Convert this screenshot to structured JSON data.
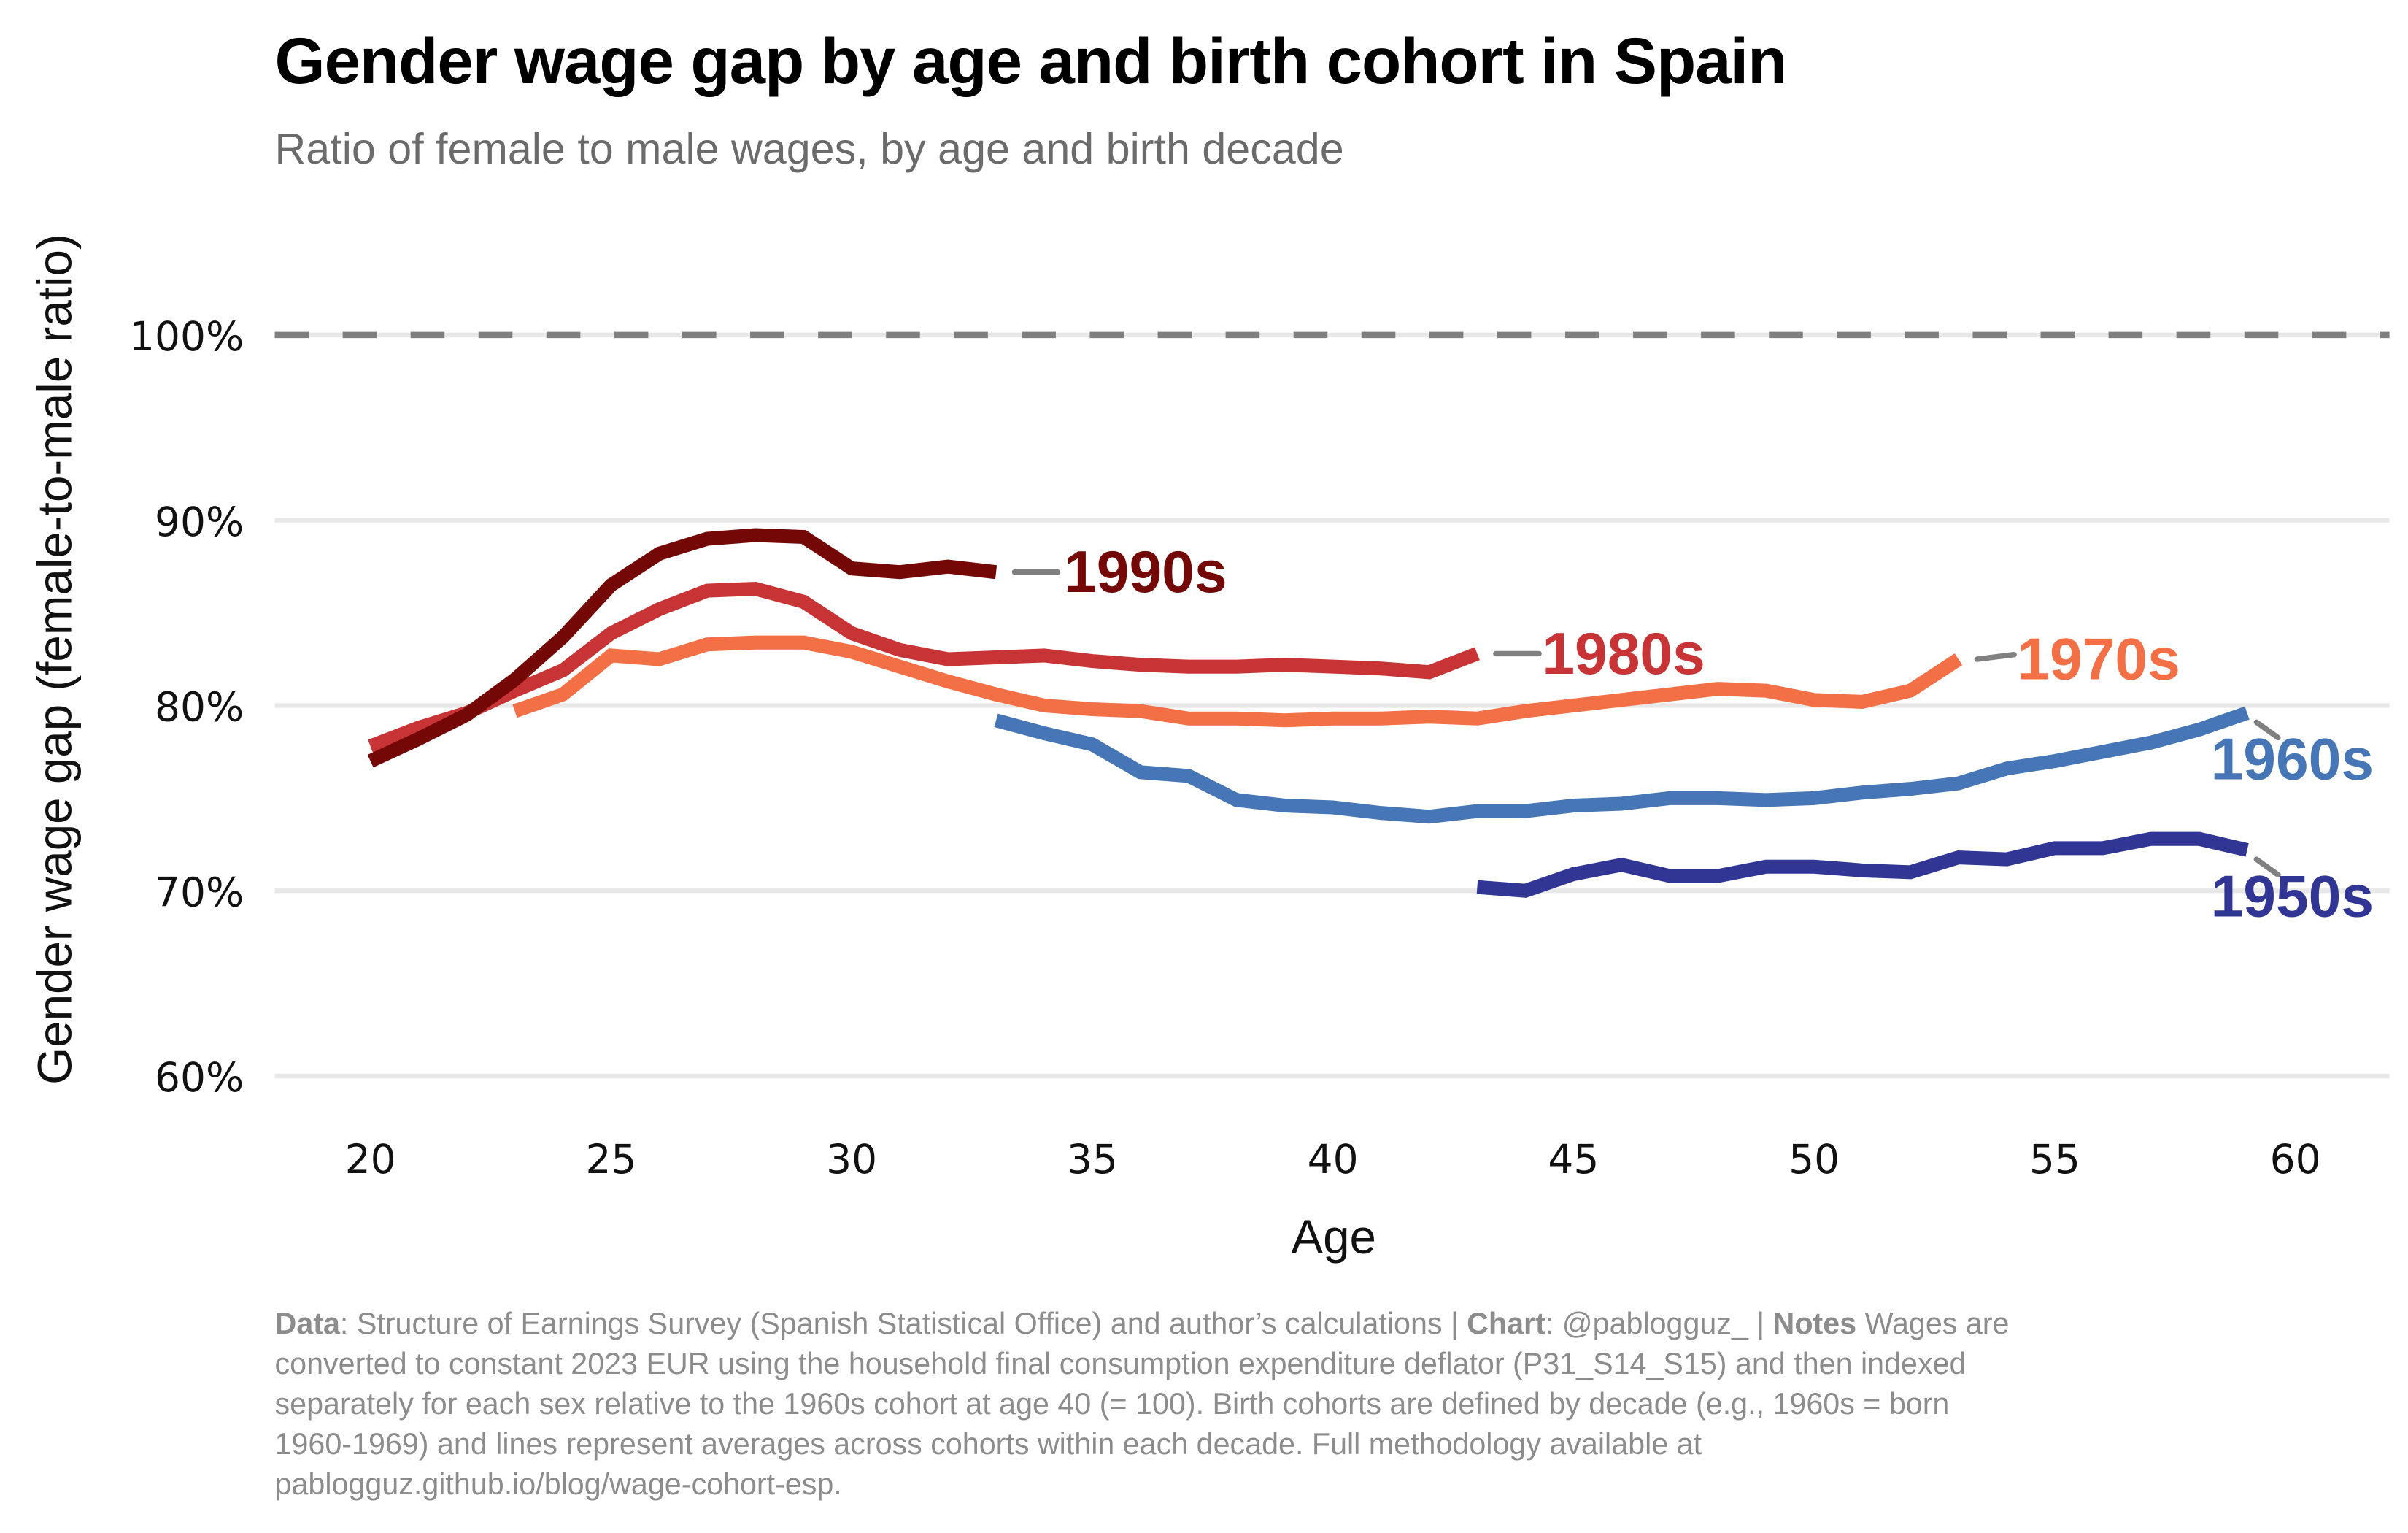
{
  "chart_data": {
    "type": "line",
    "title": "Gender wage gap by age and birth cohort in Spain",
    "subtitle": "Ratio of female to male wages, by age and birth decade",
    "xlabel": "Age",
    "ylabel": "Gender wage gap (female-to-male ratio)",
    "xlim": [
      18,
      62
    ],
    "ylim": [
      57,
      100
    ],
    "x_ticks": [
      20,
      25,
      30,
      35,
      40,
      45,
      50,
      55,
      60
    ],
    "x_tick_labels": [
      "20",
      "25",
      "30",
      "35",
      "40",
      "45",
      "50",
      "55",
      "60"
    ],
    "y_ticks": [
      60,
      70,
      80,
      90,
      100
    ],
    "y_tick_labels": [
      "60%",
      "70%",
      "80%",
      "90%",
      "100%"
    ],
    "grid": "horizontal",
    "reference_line": {
      "value": 100,
      "style": "dashed",
      "color": "#7f7f7f"
    },
    "legend": "direct-labels-at-line-ends",
    "series": [
      {
        "name": "1990s",
        "color": "#730806",
        "x": [
          20,
          21,
          22,
          23,
          24,
          25,
          26,
          27,
          28,
          29,
          30,
          31,
          32,
          33
        ],
        "values": [
          77.0,
          78.2,
          79.5,
          81.4,
          83.7,
          86.5,
          88.2,
          89.0,
          89.2,
          89.1,
          87.4,
          87.2,
          87.5,
          87.2
        ]
      },
      {
        "name": "1980s",
        "color": "#c83335",
        "x": [
          20,
          21,
          22,
          23,
          24,
          25,
          26,
          27,
          28,
          29,
          30,
          31,
          32,
          33,
          34,
          35,
          36,
          37,
          38,
          39,
          40,
          41,
          42,
          43
        ],
        "values": [
          77.8,
          78.8,
          79.6,
          80.8,
          81.9,
          83.9,
          85.2,
          86.2,
          86.3,
          85.6,
          83.9,
          83.0,
          82.5,
          82.6,
          82.7,
          82.4,
          82.2,
          82.1,
          82.1,
          82.2,
          82.1,
          82.0,
          81.8,
          82.8
        ]
      },
      {
        "name": "1970s",
        "color": "#f36f45",
        "x": [
          23,
          24,
          25,
          26,
          27,
          28,
          29,
          30,
          31,
          32,
          33,
          34,
          35,
          36,
          37,
          38,
          39,
          40,
          41,
          42,
          43,
          44,
          45,
          46,
          47,
          48,
          49,
          50,
          51,
          52,
          53
        ],
        "values": [
          79.7,
          80.6,
          82.7,
          82.5,
          83.3,
          83.4,
          83.4,
          82.9,
          82.1,
          81.3,
          80.6,
          80.0,
          79.8,
          79.7,
          79.3,
          79.3,
          79.2,
          79.3,
          79.3,
          79.4,
          79.3,
          79.7,
          80.0,
          80.3,
          80.6,
          80.9,
          80.8,
          80.3,
          80.2,
          80.8,
          82.5
        ]
      },
      {
        "name": "1960s",
        "color": "#4676b6",
        "x": [
          33,
          34,
          35,
          36,
          37,
          38,
          39,
          40,
          41,
          42,
          43,
          44,
          45,
          46,
          47,
          48,
          49,
          50,
          51,
          52,
          53,
          54,
          55,
          56,
          57,
          58,
          59
        ],
        "values": [
          79.2,
          78.5,
          77.9,
          76.4,
          76.2,
          74.9,
          74.6,
          74.5,
          74.2,
          74.0,
          74.3,
          74.3,
          74.6,
          74.7,
          75.0,
          75.0,
          74.9,
          75.0,
          75.3,
          75.5,
          75.8,
          76.6,
          77.0,
          77.5,
          78.0,
          78.7,
          79.6
        ]
      },
      {
        "name": "1950s",
        "color": "#313695",
        "x": [
          43,
          44,
          45,
          46,
          47,
          48,
          49,
          50,
          51,
          52,
          53,
          54,
          55,
          56,
          57,
          58,
          59
        ],
        "values": [
          70.2,
          70.0,
          70.9,
          71.4,
          70.8,
          70.8,
          71.3,
          71.3,
          71.1,
          71.0,
          71.8,
          71.7,
          72.3,
          72.3,
          72.8,
          72.8,
          72.2
        ]
      }
    ],
    "footnote": [
      {
        "bold": "Data",
        "text": ": Structure of Earnings Survey (Spanish Statistical Office) and author’s calculations | "
      },
      {
        "bold": "Chart",
        "text": ": @pablogguz_ | "
      },
      {
        "bold": "Notes",
        "text": " Wages are converted to constant 2023 EUR using the household final consumption expenditure deflator (P31_S14_S15) and then indexed separately for each sex relative to the 1960s cohort at age 40 (= 100). Birth cohorts are defined by decade (e.g., 1960s = born 1960-1969) and lines represent averages across cohorts within each decade. Full methodology available at pablogguz.github.io/blog/wage-cohort-esp."
      }
    ],
    "footnote_lines": [
      [
        {
          "b": "Data"
        },
        {
          "t": ": Structure of Earnings Survey (Spanish Statistical Office) and author’s calculations | "
        },
        {
          "b": "Chart"
        },
        {
          "t": ": @pablogguz_  | "
        },
        {
          "b": "Notes"
        },
        {
          "t": " Wages are"
        }
      ],
      [
        {
          "t": "converted to constant 2023 EUR using the household final consumption expenditure deflator (P31_S14_S15) and then indexed"
        }
      ],
      [
        {
          "t": "separately for each sex relative to the 1960s cohort at age 40 (= 100). Birth cohorts are defined by decade (e.g., 1960s = born"
        }
      ],
      [
        {
          "t": "1960-1969) and lines represent averages across cohorts within each decade. Full methodology available at"
        }
      ],
      [
        {
          "t": "pablogguz.github.io/blog/wage-cohort-esp."
        }
      ]
    ]
  }
}
